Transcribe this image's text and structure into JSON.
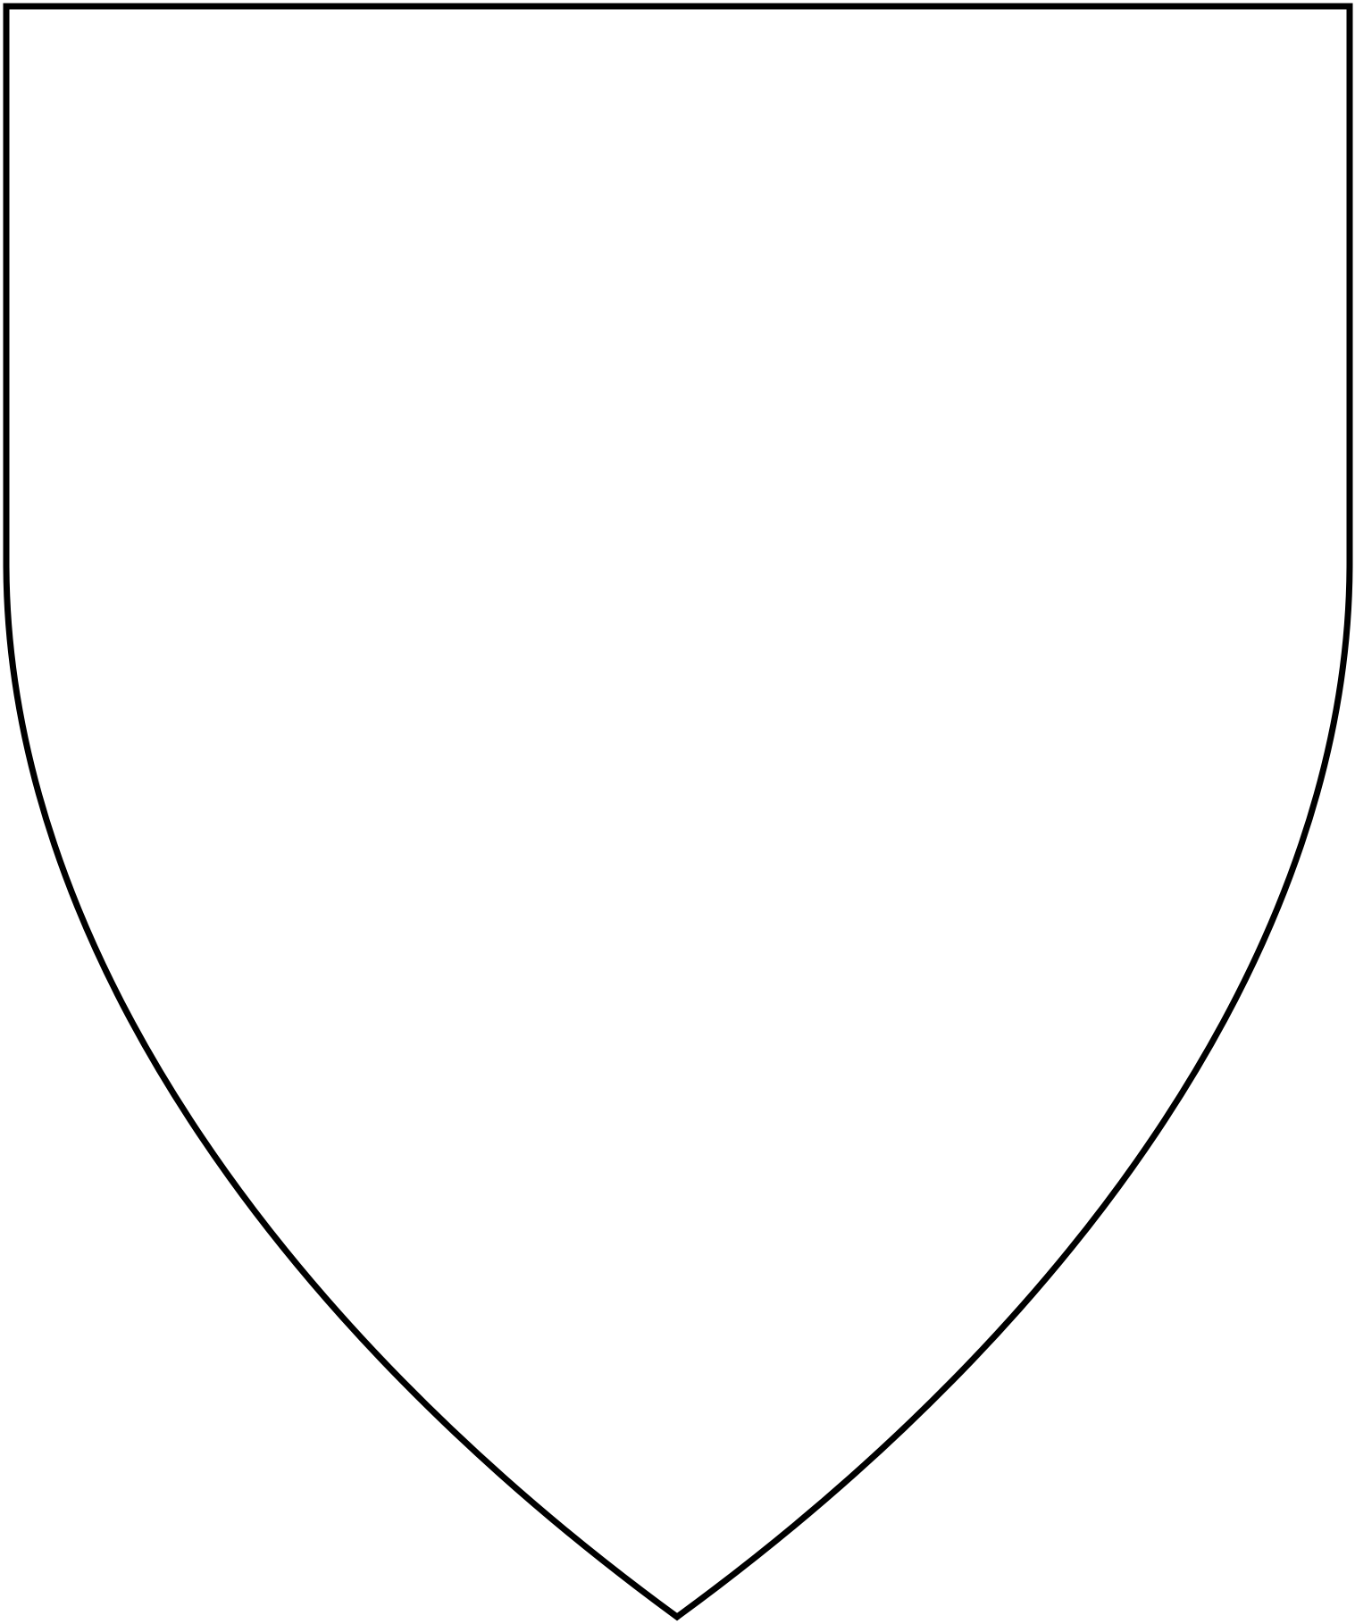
{
  "figure": {
    "shape": "heater-shield",
    "fill": "#ffffff",
    "outline": "#000000",
    "accent_edge": "#cc0000"
  }
}
